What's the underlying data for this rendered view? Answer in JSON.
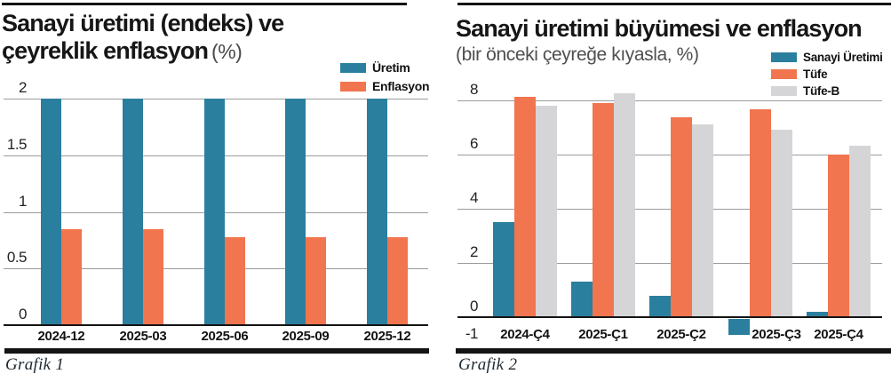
{
  "palette": {
    "production_teal": "#2b7f9e",
    "inflation_orange": "#f1754e",
    "tufe_b_gray": "#d5d5d7",
    "grid_gray": "#9c9c9c",
    "axis_black": "#141414",
    "title_black": "#161616",
    "subtitle_gray": "#4f4f4f",
    "caption_ink": "#1e2a33"
  },
  "left_chart": {
    "title_line1": "Sanayi üretimi (endeks) ve",
    "title_line2": "çeyreklik enflasyon",
    "title_unit": "(%)",
    "caption": "Grafik 1"
  },
  "right_chart": {
    "title": "Sanayi üretimi büyümesi ve enflasyon",
    "subtitle": "(bir önceki çeyreğe kıyasla, %)",
    "caption": "Grafik 2"
  },
  "chart_data": [
    {
      "type": "bar",
      "title": "Sanayi üretimi (endeks) ve çeyreklik enflasyon (%)",
      "categories": [
        "2024-12",
        "2025-03",
        "2025-06",
        "2025-09",
        "2025-12"
      ],
      "series": [
        {
          "name": "Üretim",
          "color": "#2b7f9e",
          "values": [
            2,
            2,
            2,
            2,
            2
          ]
        },
        {
          "name": "Enflasyon",
          "color": "#f1754e",
          "values": [
            0.85,
            0.85,
            0.78,
            0.78,
            0.78
          ]
        }
      ],
      "xlabel": "",
      "ylabel": "",
      "ylim": [
        0,
        2
      ],
      "yticks": [
        2,
        1.5,
        1,
        0.5,
        0
      ],
      "grid": true,
      "legend_position": "top-right"
    },
    {
      "type": "bar",
      "title": "Sanayi üretimi büyümesi ve enflasyon",
      "subtitle": "(bir önceki çeyreğe kıyasla, %)",
      "categories": [
        "2024-Ç4",
        "2025-Ç1",
        "2025-Ç2",
        "2025-Ç3",
        "2025-Ç4"
      ],
      "series": [
        {
          "name": "Sanayi Üretimi",
          "color": "#2b7f9e",
          "values": [
            3.5,
            1.3,
            0.8,
            -0.6,
            0.2
          ]
        },
        {
          "name": "Tüfe",
          "color": "#f1754e",
          "values": [
            8.1,
            7.9,
            7.35,
            7.65,
            6.0
          ]
        },
        {
          "name": "Tüfe-B",
          "color": "#d5d5d7",
          "values": [
            7.8,
            8.25,
            7.1,
            6.9,
            6.3
          ]
        }
      ],
      "xlabel": "",
      "ylabel": "",
      "ylim": [
        -1,
        8
      ],
      "yticks": [
        8,
        6,
        4,
        2,
        0,
        -1
      ],
      "grid": true,
      "legend_position": "top-right"
    }
  ]
}
